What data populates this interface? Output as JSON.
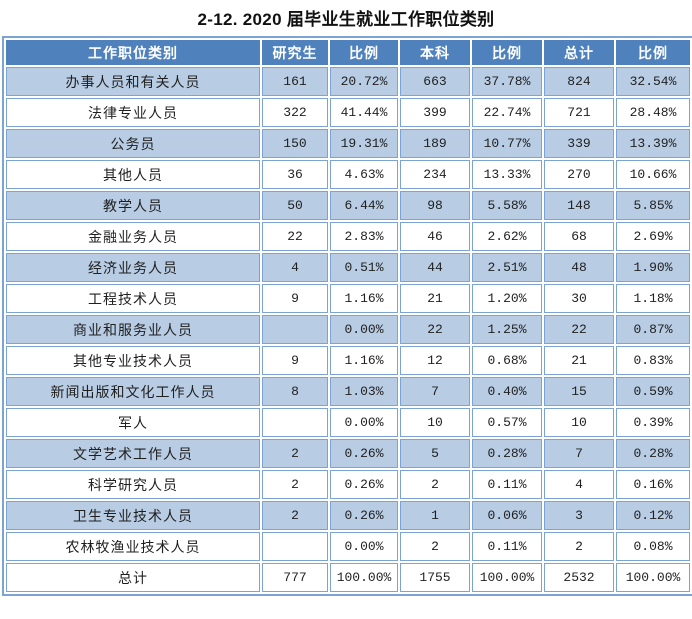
{
  "title": "2-12. 2020 届毕业生就业工作职位类别",
  "colors": {
    "header_bg": "#4f81bd",
    "header_text": "#ffffff",
    "shaded_row_bg": "#b8cce4",
    "border": "#7ba3d4",
    "text": "#1f1f1f"
  },
  "table": {
    "headers": [
      "工作职位类别",
      "研究生",
      "比例",
      "本科",
      "比例",
      "总计",
      "比例"
    ],
    "rows": [
      [
        "办事人员和有关人员",
        "161",
        "20.72%",
        "663",
        "37.78%",
        "824",
        "32.54%"
      ],
      [
        "法律专业人员",
        "322",
        "41.44%",
        "399",
        "22.74%",
        "721",
        "28.48%"
      ],
      [
        "公务员",
        "150",
        "19.31%",
        "189",
        "10.77%",
        "339",
        "13.39%"
      ],
      [
        "其他人员",
        "36",
        "4.63%",
        "234",
        "13.33%",
        "270",
        "10.66%"
      ],
      [
        "教学人员",
        "50",
        "6.44%",
        "98",
        "5.58%",
        "148",
        "5.85%"
      ],
      [
        "金融业务人员",
        "22",
        "2.83%",
        "46",
        "2.62%",
        "68",
        "2.69%"
      ],
      [
        "经济业务人员",
        "4",
        "0.51%",
        "44",
        "2.51%",
        "48",
        "1.90%"
      ],
      [
        "工程技术人员",
        "9",
        "1.16%",
        "21",
        "1.20%",
        "30",
        "1.18%"
      ],
      [
        "商业和服务业人员",
        "",
        "0.00%",
        "22",
        "1.25%",
        "22",
        "0.87%"
      ],
      [
        "其他专业技术人员",
        "9",
        "1.16%",
        "12",
        "0.68%",
        "21",
        "0.83%"
      ],
      [
        "新闻出版和文化工作人员",
        "8",
        "1.03%",
        "7",
        "0.40%",
        "15",
        "0.59%"
      ],
      [
        "军人",
        "",
        "0.00%",
        "10",
        "0.57%",
        "10",
        "0.39%"
      ],
      [
        "文学艺术工作人员",
        "2",
        "0.26%",
        "5",
        "0.28%",
        "7",
        "0.28%"
      ],
      [
        "科学研究人员",
        "2",
        "0.26%",
        "2",
        "0.11%",
        "4",
        "0.16%"
      ],
      [
        "卫生专业技术人员",
        "2",
        "0.26%",
        "1",
        "0.06%",
        "3",
        "0.12%"
      ],
      [
        "农林牧渔业技术人员",
        "",
        "0.00%",
        "2",
        "0.11%",
        "2",
        "0.08%"
      ],
      [
        "总计",
        "777",
        "100.00%",
        "1755",
        "100.00%",
        "2532",
        "100.00%"
      ]
    ]
  }
}
